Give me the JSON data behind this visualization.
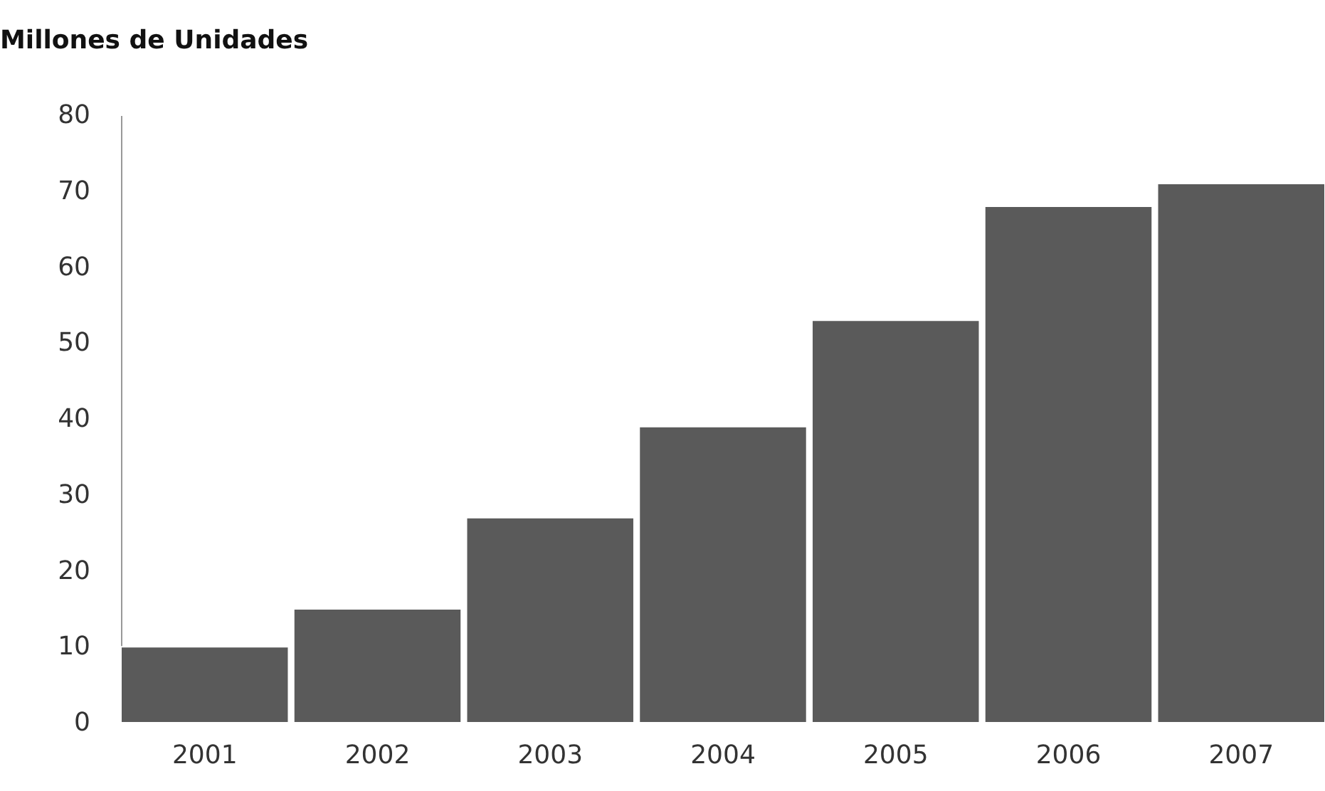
{
  "chart_data": {
    "type": "bar",
    "title": "Millones de Unidades",
    "categories": [
      "2001",
      "2002",
      "2003",
      "2004",
      "2005",
      "2006",
      "2007"
    ],
    "values": [
      10,
      15,
      27,
      39,
      53,
      68,
      71
    ],
    "color": "#5a5a5a",
    "ylim": [
      0,
      80
    ],
    "yticks": [
      0,
      10,
      20,
      30,
      40,
      50,
      60,
      70,
      80
    ],
    "grid": false
  }
}
